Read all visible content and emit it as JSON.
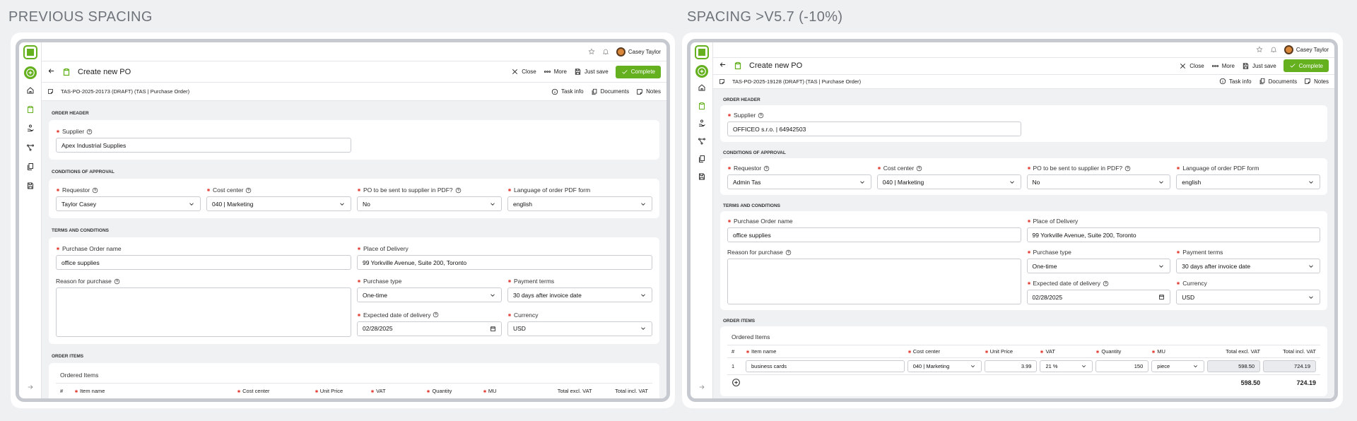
{
  "panels": [
    {
      "heading": "PREVIOUS SPACING",
      "user": "Casey Taylor",
      "title": "Create new PO",
      "actions": [
        "Close",
        "More",
        "Just save"
      ],
      "primary_action": "Complete",
      "document_id": "TAS-PO-2025-20173 (DRAFT) (TAS | Purchase Order)",
      "tabs": [
        "Task info",
        "Documents",
        "Notes"
      ],
      "sections": [
        {
          "label": "ORDER HEADER",
          "fields": [
            {
              "label": "Supplier",
              "value": "Apex Industrial Supplies",
              "kind": "input",
              "required": true,
              "help": true
            }
          ]
        },
        {
          "label": "CONDITIONS OF APPROVAL",
          "fields": [
            {
              "label": "Requestor",
              "value": "Taylor Casey",
              "kind": "select",
              "required": true,
              "help": true
            },
            {
              "label": "Cost center",
              "value": "040 | Marketing",
              "kind": "select",
              "required": true,
              "help": true
            },
            {
              "label": "PO to be sent to supplier in PDF?",
              "value": "No",
              "kind": "select",
              "required": true,
              "help": true
            },
            {
              "label": "Language of order PDF form",
              "value": "english",
              "kind": "select",
              "required": true
            }
          ]
        },
        {
          "label": "TERMS AND CONDITIONS",
          "fields": [
            {
              "label": "Purchase Order name",
              "value": "office supplies",
              "kind": "input",
              "required": true
            },
            {
              "label": "Place of Delivery",
              "value": "99 Yorkville Avenue, Suite 200, Toronto",
              "kind": "input",
              "required": true
            },
            {
              "label": "Reason for purchase",
              "kind": "textarea",
              "help": true
            },
            {
              "label": "Purchase type",
              "value": "One-time",
              "kind": "select",
              "required": true
            },
            {
              "label": "Payment terms",
              "value": "30 days after invoice date",
              "kind": "select",
              "required": true
            },
            {
              "label": "Expected date of delivery",
              "value": "02/28/2025",
              "kind": "date",
              "required": true,
              "help": true
            },
            {
              "label": "Currency",
              "value": "USD",
              "kind": "select",
              "required": true
            }
          ]
        }
      ],
      "items": {
        "label": "ORDER ITEMS",
        "title": "Ordered Items",
        "columns": [
          {
            "label": "#"
          },
          {
            "label": "Item name",
            "required": true
          },
          {
            "label": "Cost center",
            "required": true
          },
          {
            "label": "Unit Price",
            "required": true
          },
          {
            "label": "VAT",
            "required": true
          },
          {
            "label": "Quantity",
            "required": true
          },
          {
            "label": "MU",
            "required": true
          },
          {
            "label": "Total excl. VAT"
          },
          {
            "label": "Total incl. VAT"
          }
        ]
      }
    },
    {
      "heading": "SPACING >V5.7 (-10%)",
      "user": "Casey Taylor",
      "title": "Create new PO",
      "actions": [
        "Close",
        "More",
        "Just save"
      ],
      "primary_action": "Complete",
      "document_id": "TAS-PO-2025-19128 (DRAFT) (TAS | Purchase Order)",
      "tabs": [
        "Task info",
        "Documents",
        "Notes"
      ],
      "sections": [
        {
          "label": "ORDER HEADER",
          "fields": [
            {
              "label": "Supplier",
              "value": "OFFICEO s.r.o. | 64942503",
              "kind": "input",
              "required": true,
              "help": true
            }
          ]
        },
        {
          "label": "CONDITIONS OF APPROVAL",
          "fields": [
            {
              "label": "Requestor",
              "value": "Admin Tas",
              "kind": "select",
              "required": true,
              "help": true
            },
            {
              "label": "Cost center",
              "value": "040 | Marketing",
              "kind": "select",
              "required": true,
              "help": true
            },
            {
              "label": "PO to be sent to supplier in PDF?",
              "value": "No",
              "kind": "select",
              "required": true,
              "help": true
            },
            {
              "label": "Language of order PDF form",
              "value": "english",
              "kind": "select",
              "required": true
            }
          ]
        },
        {
          "label": "TERMS AND CONDITIONS",
          "fields": [
            {
              "label": "Purchase Order name",
              "value": "office supplies",
              "kind": "input",
              "required": true
            },
            {
              "label": "Place of Delivery",
              "value": "99 Yorkville Avenue, Suite 200, Toronto",
              "kind": "input",
              "required": true
            },
            {
              "label": "Reason for purchase",
              "kind": "textarea",
              "help": true
            },
            {
              "label": "Purchase type",
              "value": "One-time",
              "kind": "select",
              "required": true
            },
            {
              "label": "Payment terms",
              "value": "30 days after invoice date",
              "kind": "select",
              "required": true
            },
            {
              "label": "Expected date of delivery",
              "value": "02/28/2025",
              "kind": "date",
              "required": true,
              "help": true
            },
            {
              "label": "Currency",
              "value": "USD",
              "kind": "select",
              "required": true
            }
          ]
        }
      ],
      "items": {
        "label": "ORDER ITEMS",
        "title": "Ordered Items",
        "columns": [
          {
            "label": "#"
          },
          {
            "label": "Item name",
            "required": true
          },
          {
            "label": "Cost center",
            "required": true
          },
          {
            "label": "Unit Price",
            "required": true
          },
          {
            "label": "VAT",
            "required": true
          },
          {
            "label": "Quantity",
            "required": true
          },
          {
            "label": "MU",
            "required": true
          },
          {
            "label": "Total excl. VAT"
          },
          {
            "label": "Total incl. VAT"
          }
        ],
        "rows": [
          [
            {
              "value": "1",
              "kind": "text"
            },
            {
              "value": "business cards",
              "kind": "input"
            },
            {
              "value": "040 | Marketing",
              "kind": "select"
            },
            {
              "value": "3.99",
              "kind": "input"
            },
            {
              "value": "21 %",
              "kind": "select"
            },
            {
              "value": "150",
              "kind": "input"
            },
            {
              "value": "piece",
              "kind": "select"
            },
            {
              "value": "598.50",
              "kind": "readonly"
            },
            {
              "value": "724.19",
              "kind": "readonly"
            }
          ]
        ],
        "totals": [
          "598.50",
          "724.19"
        ]
      }
    }
  ]
}
